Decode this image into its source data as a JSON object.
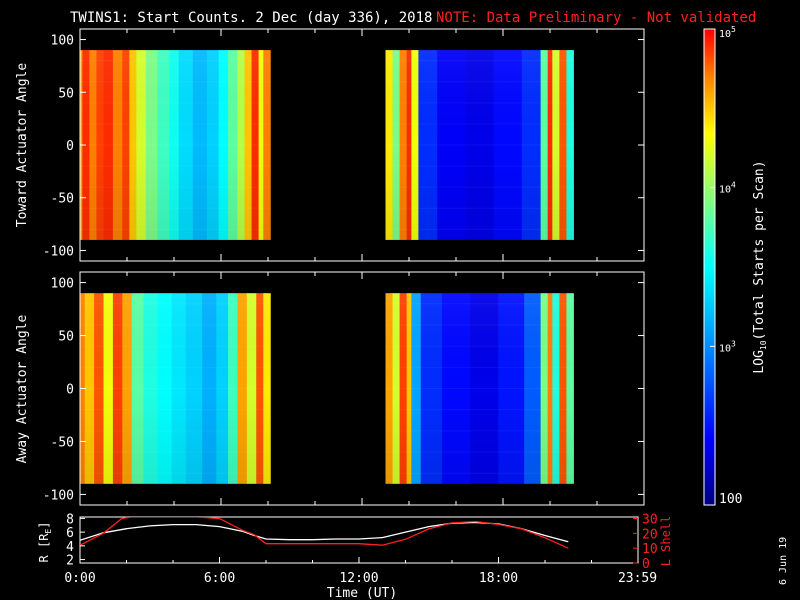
{
  "title": {
    "main": "TWINS1: Start Counts.  2 Dec (day 336), 2018",
    "note": "NOTE: Data Preliminary - Not validated"
  },
  "date_stamp": "6 Jun 19",
  "colors": {
    "background": "#000000",
    "axis": "#ffffff",
    "note": "#ff2020",
    "lshell": "#ff2020",
    "radius": "#ffffff"
  },
  "chart_data": [
    {
      "type": "heatmap",
      "panel": "top",
      "ylabel": "Toward Actuator Angle",
      "ylim": [
        -110,
        110
      ],
      "yticks": [
        100,
        50,
        0,
        -50,
        -100
      ],
      "xlim": [
        0,
        24
      ],
      "data_yrange": [
        -90,
        90
      ],
      "segments": [
        {
          "t_start": 0.0,
          "t_end": 8.1,
          "bands": [
            {
              "t0": 0.0,
              "t1": 0.1,
              "log": 4.6
            },
            {
              "t0": 0.1,
              "t1": 0.4,
              "log": 4.9
            },
            {
              "t0": 0.4,
              "t1": 0.7,
              "log": 4.7
            },
            {
              "t0": 0.7,
              "t1": 1.0,
              "log": 4.85
            },
            {
              "t0": 1.0,
              "t1": 1.4,
              "log": 4.9
            },
            {
              "t0": 1.4,
              "t1": 1.8,
              "log": 4.7
            },
            {
              "t0": 1.8,
              "t1": 2.1,
              "log": 4.85
            },
            {
              "t0": 2.1,
              "t1": 2.4,
              "log": 4.5
            },
            {
              "t0": 2.4,
              "t1": 2.8,
              "log": 4.2
            },
            {
              "t0": 2.8,
              "t1": 3.3,
              "log": 3.9
            },
            {
              "t0": 3.3,
              "t1": 3.8,
              "log": 3.7
            },
            {
              "t0": 3.8,
              "t1": 4.2,
              "log": 3.55
            },
            {
              "t0": 4.2,
              "t1": 4.8,
              "log": 3.35
            },
            {
              "t0": 4.8,
              "t1": 5.4,
              "log": 3.2
            },
            {
              "t0": 5.4,
              "t1": 5.9,
              "log": 3.3
            },
            {
              "t0": 5.9,
              "t1": 6.3,
              "log": 3.5
            },
            {
              "t0": 6.3,
              "t1": 6.7,
              "log": 3.8
            },
            {
              "t0": 6.7,
              "t1": 7.0,
              "log": 4.1
            },
            {
              "t0": 7.0,
              "t1": 7.3,
              "log": 4.5
            },
            {
              "t0": 7.3,
              "t1": 7.6,
              "log": 4.9
            },
            {
              "t0": 7.6,
              "t1": 7.8,
              "log": 4.3
            },
            {
              "t0": 7.8,
              "t1": 8.1,
              "log": 4.7
            }
          ]
        },
        {
          "t_start": 13.0,
          "t_end": 21.0,
          "bands": [
            {
              "t0": 13.0,
              "t1": 13.3,
              "log": 4.4
            },
            {
              "t0": 13.3,
              "t1": 13.6,
              "log": 3.9
            },
            {
              "t0": 13.6,
              "t1": 13.9,
              "log": 4.7
            },
            {
              "t0": 13.9,
              "t1": 14.1,
              "log": 4.9
            },
            {
              "t0": 14.1,
              "t1": 14.4,
              "log": 4.3
            },
            {
              "t0": 14.4,
              "t1": 15.2,
              "log": 2.6
            },
            {
              "t0": 15.2,
              "t1": 16.4,
              "log": 2.4
            },
            {
              "t0": 16.4,
              "t1": 17.6,
              "log": 2.35
            },
            {
              "t0": 17.6,
              "t1": 18.8,
              "log": 2.45
            },
            {
              "t0": 18.8,
              "t1": 19.6,
              "log": 2.6
            },
            {
              "t0": 19.6,
              "t1": 19.9,
              "log": 3.8
            },
            {
              "t0": 19.9,
              "t1": 20.1,
              "log": 4.9
            },
            {
              "t0": 20.1,
              "t1": 20.4,
              "log": 4.2
            },
            {
              "t0": 20.4,
              "t1": 20.7,
              "log": 4.8
            },
            {
              "t0": 20.7,
              "t1": 21.0,
              "log": 3.6
            }
          ]
        }
      ]
    },
    {
      "type": "heatmap",
      "panel": "bottom",
      "ylabel": "Away Actuator Angle",
      "ylim": [
        -110,
        110
      ],
      "yticks": [
        100,
        50,
        0,
        -50,
        -100
      ],
      "xlim": [
        0,
        24
      ],
      "data_yrange": [
        -90,
        90
      ],
      "segments": [
        {
          "t_start": 0.0,
          "t_end": 8.1,
          "bands": [
            {
              "t0": 0.0,
              "t1": 0.2,
              "log": 4.7
            },
            {
              "t0": 0.2,
              "t1": 0.6,
              "log": 4.5
            },
            {
              "t0": 0.6,
              "t1": 1.0,
              "log": 4.8
            },
            {
              "t0": 1.0,
              "t1": 1.4,
              "log": 4.3
            },
            {
              "t0": 1.4,
              "t1": 1.8,
              "log": 4.85
            },
            {
              "t0": 1.8,
              "t1": 2.2,
              "log": 4.6
            },
            {
              "t0": 2.2,
              "t1": 2.7,
              "log": 3.8
            },
            {
              "t0": 2.7,
              "t1": 3.3,
              "log": 3.6
            },
            {
              "t0": 3.3,
              "t1": 3.9,
              "log": 3.5
            },
            {
              "t0": 3.9,
              "t1": 4.5,
              "log": 3.4
            },
            {
              "t0": 4.5,
              "t1": 5.2,
              "log": 3.3
            },
            {
              "t0": 5.2,
              "t1": 5.8,
              "log": 3.15
            },
            {
              "t0": 5.8,
              "t1": 6.3,
              "log": 3.3
            },
            {
              "t0": 6.3,
              "t1": 6.7,
              "log": 3.7
            },
            {
              "t0": 6.7,
              "t1": 7.1,
              "log": 4.6
            },
            {
              "t0": 7.1,
              "t1": 7.5,
              "log": 4.2
            },
            {
              "t0": 7.5,
              "t1": 7.8,
              "log": 4.8
            },
            {
              "t0": 7.8,
              "t1": 8.1,
              "log": 4.4
            }
          ]
        },
        {
          "t_start": 13.0,
          "t_end": 21.0,
          "bands": [
            {
              "t0": 13.0,
              "t1": 13.3,
              "log": 4.6
            },
            {
              "t0": 13.3,
              "t1": 13.6,
              "log": 4.2
            },
            {
              "t0": 13.6,
              "t1": 13.9,
              "log": 4.85
            },
            {
              "t0": 13.9,
              "t1": 14.1,
              "log": 4.5
            },
            {
              "t0": 14.1,
              "t1": 14.5,
              "log": 3.1
            },
            {
              "t0": 14.5,
              "t1": 15.4,
              "log": 2.6
            },
            {
              "t0": 15.4,
              "t1": 16.6,
              "log": 2.45
            },
            {
              "t0": 16.6,
              "t1": 17.8,
              "log": 2.35
            },
            {
              "t0": 17.8,
              "t1": 18.9,
              "log": 2.5
            },
            {
              "t0": 18.9,
              "t1": 19.6,
              "log": 2.8
            },
            {
              "t0": 19.6,
              "t1": 19.9,
              "log": 3.9
            },
            {
              "t0": 19.9,
              "t1": 20.1,
              "log": 4.7
            },
            {
              "t0": 20.1,
              "t1": 20.4,
              "log": 3.6
            },
            {
              "t0": 20.4,
              "t1": 20.7,
              "log": 4.8
            },
            {
              "t0": 20.7,
              "t1": 21.0,
              "log": 3.8
            }
          ]
        }
      ]
    },
    {
      "type": "line",
      "panel": "orbit",
      "xlabel": "Time (UT)",
      "xlim": [
        0,
        24
      ],
      "xtick_labels": [
        {
          "t": 0,
          "label": "0:00"
        },
        {
          "t": 6,
          "label": "6:00"
        },
        {
          "t": 12,
          "label": "12:00"
        },
        {
          "t": 18,
          "label": "18:00"
        },
        {
          "t": 23.98,
          "label": "23:59"
        }
      ],
      "left_axis": {
        "label": "R [R",
        "sub": "E",
        "close": "]",
        "ylim": [
          1.5,
          8.2
        ],
        "ticks": [
          2,
          4,
          6,
          8
        ]
      },
      "right_axis": {
        "label": "L Shell",
        "ylim": [
          0,
          31
        ],
        "ticks": [
          0,
          10,
          20,
          30
        ]
      },
      "series": [
        {
          "name": "R",
          "axis": "left",
          "x": [
            0,
            1,
            2,
            3,
            4,
            5,
            6,
            7,
            7.5,
            8,
            9,
            10,
            11,
            12,
            13,
            14,
            15,
            16,
            17,
            18,
            19,
            20,
            21
          ],
          "y": [
            4.8,
            5.9,
            6.5,
            6.9,
            7.1,
            7.1,
            6.8,
            6.1,
            5.5,
            5.0,
            4.9,
            4.9,
            5.0,
            5.0,
            5.2,
            6.0,
            6.8,
            7.3,
            7.4,
            7.2,
            6.5,
            5.5,
            4.6
          ]
        },
        {
          "name": "L Shell",
          "axis": "right",
          "x": [
            0,
            1,
            1.8,
            2.2,
            5,
            6,
            6.5,
            7,
            7.5,
            8,
            10,
            12,
            13,
            14,
            15,
            16,
            17,
            18,
            19,
            20,
            21
          ],
          "y": [
            12,
            20,
            30,
            31,
            31,
            30,
            26,
            22,
            19,
            13,
            13,
            13,
            12,
            16,
            23,
            27,
            28,
            26,
            23,
            17,
            10
          ]
        }
      ]
    }
  ],
  "colorbar": {
    "label": "LOG",
    "label_sub": "10",
    "label_rest": "(Total Starts per Scan)",
    "ticks": [
      {
        "log": 5,
        "base": "10",
        "exp": "5"
      },
      {
        "log": 4,
        "base": "10",
        "exp": "4"
      },
      {
        "log": 3,
        "base": "10",
        "exp": "3"
      },
      {
        "log": 2,
        "text": "100"
      }
    ],
    "log_range": [
      2,
      5
    ]
  }
}
